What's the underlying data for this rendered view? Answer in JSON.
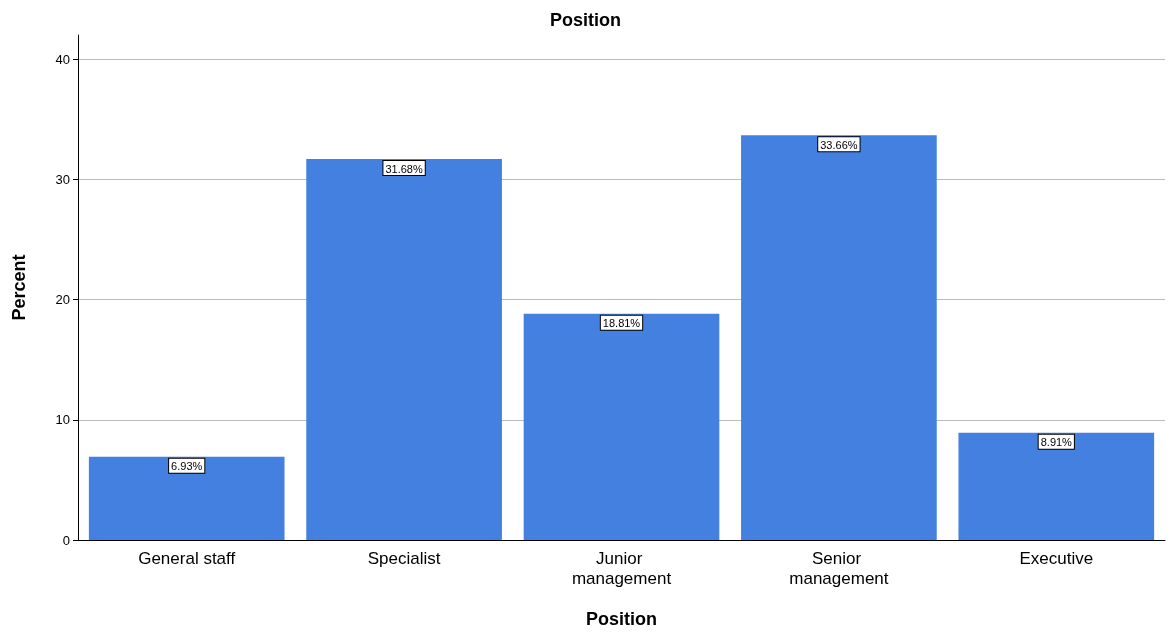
{
  "chart_data": {
    "type": "bar",
    "title": "Position",
    "xlabel": "Position",
    "ylabel": "Percent",
    "categories": [
      "General staff",
      "Specialist",
      "Junior management",
      "Senior management",
      "Executive"
    ],
    "values": [
      6.93,
      31.68,
      18.81,
      33.66,
      8.91
    ],
    "value_labels": [
      "6.93%",
      "31.68%",
      "18.81%",
      "33.66%",
      "8.91%"
    ],
    "color": "#4380e0",
    "ylim": [
      0,
      42
    ],
    "yticks": [
      0,
      10,
      20,
      30,
      40
    ],
    "grid": "y"
  }
}
